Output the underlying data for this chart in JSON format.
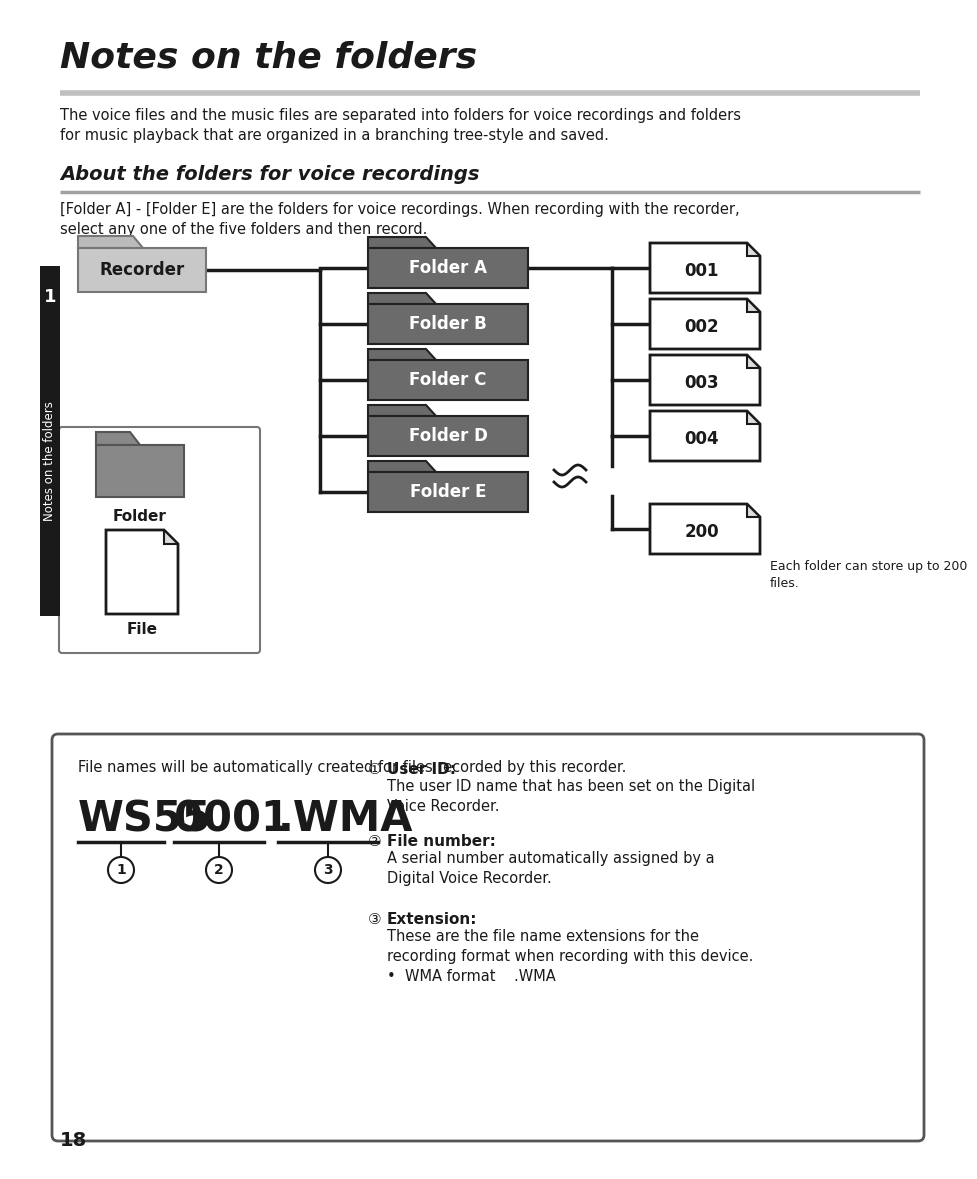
{
  "title": "Notes on the folders",
  "title_rule_color": "#c0c0c0",
  "subtitle": "About the folders for voice recordings",
  "subtitle_rule_color": "#a0a0a0",
  "body_text1": "The voice files and the music files are separated into folders for voice recordings and folders\nfor music playback that are organized in a branching tree-style and saved.",
  "body_text2_plain": "[Folder A] - [Folder E] are the folders for voice recordings. When recording with the recorder,\nselect any one of the five folders and then record.",
  "folders": [
    "Folder A",
    "Folder B",
    "Folder C",
    "Folder D",
    "Folder E"
  ],
  "files_top": [
    "001",
    "002",
    "003",
    "004"
  ],
  "file_bottom": "200",
  "folder_bg": "#6b6b6b",
  "folder_text_color": "#ffffff",
  "recorder_bg": "#c8c8c8",
  "each_folder_note": "Each folder can store up to 200\nfiles.",
  "box_text_intro": "File names will be automatically created for files recorded by this recorder.",
  "filename_ws55": "WS55",
  "filename_0001": "0001",
  "filename_wma": ".WMA",
  "label1_title": "User ID:",
  "label1_body": "The user ID name that has been set on the Digital\nVoice Recorder.",
  "label2_title": "File number:",
  "label2_body": "A serial number automatically assigned by a\nDigital Voice Recorder.",
  "label3_title": "Extension:",
  "label3_body": "These are the file name extensions for the\nrecording format when recording with this device.\n•  WMA format    .WMA",
  "page_number": "18",
  "side_label": "Notes on the folders",
  "chapter_number": "1",
  "bg_color": "#ffffff",
  "text_color": "#1a1a1a",
  "side_bar_color": "#1a1a1a"
}
